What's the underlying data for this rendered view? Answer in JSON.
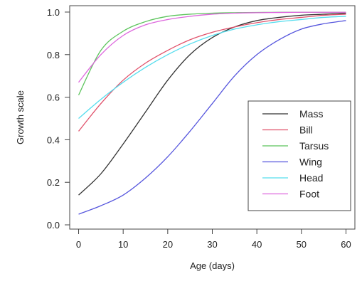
{
  "chart_data": {
    "type": "line",
    "title": "",
    "xlabel": "Age (days)",
    "ylabel": "Growth scale",
    "xlim": [
      -2,
      62
    ],
    "ylim": [
      -0.02,
      1.03
    ],
    "xticks": [
      0,
      10,
      20,
      30,
      40,
      50,
      60
    ],
    "yticks": [
      0.0,
      0.2,
      0.4,
      0.6,
      0.8,
      1.0
    ],
    "xtick_labels": [
      "0",
      "10",
      "20",
      "30",
      "40",
      "50",
      "60"
    ],
    "ytick_labels": [
      "0.0",
      "0.2",
      "0.4",
      "0.6",
      "0.8",
      "1.0"
    ],
    "grid": false,
    "legend_position": "bottom-right",
    "x": [
      0,
      5,
      10,
      15,
      20,
      25,
      30,
      35,
      40,
      45,
      50,
      55,
      60
    ],
    "series": [
      {
        "name": "Mass",
        "color": "#333333",
        "values": [
          0.14,
          0.24,
          0.38,
          0.53,
          0.68,
          0.8,
          0.88,
          0.93,
          0.96,
          0.975,
          0.985,
          0.99,
          0.995
        ]
      },
      {
        "name": "Bill",
        "color": "#e0506a",
        "values": [
          0.44,
          0.57,
          0.68,
          0.76,
          0.82,
          0.87,
          0.905,
          0.93,
          0.95,
          0.965,
          0.975,
          0.985,
          0.99
        ]
      },
      {
        "name": "Tarsus",
        "color": "#5cc45c",
        "values": [
          0.61,
          0.82,
          0.91,
          0.955,
          0.98,
          0.99,
          0.995,
          0.997,
          0.998,
          0.999,
          0.999,
          0.999,
          0.999
        ]
      },
      {
        "name": "Wing",
        "color": "#5555dd",
        "values": [
          0.05,
          0.09,
          0.14,
          0.22,
          0.32,
          0.44,
          0.57,
          0.7,
          0.8,
          0.87,
          0.92,
          0.945,
          0.96
        ]
      },
      {
        "name": "Head",
        "color": "#55ddee",
        "values": [
          0.5,
          0.59,
          0.67,
          0.74,
          0.8,
          0.85,
          0.89,
          0.92,
          0.94,
          0.955,
          0.965,
          0.975,
          0.98
        ]
      },
      {
        "name": "Foot",
        "color": "#dd66dd",
        "values": [
          0.67,
          0.8,
          0.89,
          0.94,
          0.965,
          0.98,
          0.99,
          0.995,
          0.997,
          0.998,
          0.999,
          0.999,
          0.999
        ]
      }
    ]
  }
}
